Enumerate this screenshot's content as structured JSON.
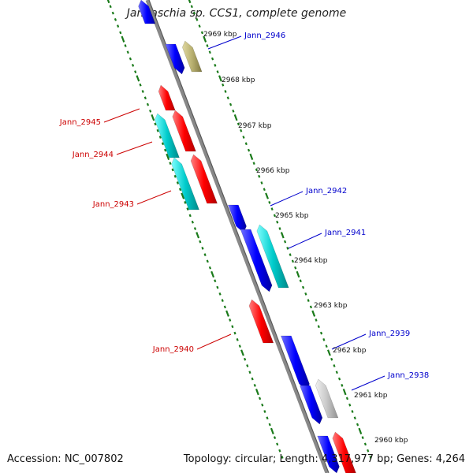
{
  "title": "Jannaschia sp. CCS1, complete genome",
  "footer": {
    "accession": "Accession: NC_007802",
    "topology": "Topology: circular; Length: 4,317,977 bp; Genes: 4,264"
  },
  "scale_labels": [
    "2969 kbp",
    "2968 kbp",
    "2967 kbp",
    "2966 kbp",
    "2965 kbp",
    "2964 kbp",
    "2963 kbp",
    "2962 kbp",
    "2961 kbp",
    "2960 kbp"
  ],
  "colors": {
    "red": "#ff0000",
    "blue": "#0000ff",
    "cyan": "#00cccc",
    "olive": "#b8b070",
    "gray": "#c8c8c8",
    "label_red": "#cc0000",
    "label_blue": "#0000cc",
    "axis": "#888888",
    "tick": "#1a7a1a"
  },
  "gene_labels": [
    {
      "id": "Jann_2946",
      "text": "Jann_2946",
      "strand": "plus"
    },
    {
      "id": "Jann_2945",
      "text": "Jann_2945",
      "strand": "minus"
    },
    {
      "id": "Jann_2944",
      "text": "Jann_2944",
      "strand": "minus"
    },
    {
      "id": "Jann_2943",
      "text": "Jann_2943",
      "strand": "minus"
    },
    {
      "id": "Jann_2942",
      "text": "Jann_2942",
      "strand": "plus"
    },
    {
      "id": "Jann_2941",
      "text": "Jann_2941",
      "strand": "plus"
    },
    {
      "id": "Jann_2940",
      "text": "Jann_2940",
      "strand": "minus"
    },
    {
      "id": "Jann_2939",
      "text": "Jann_2939",
      "strand": "plus"
    },
    {
      "id": "Jann_2938",
      "text": "Jann_2938",
      "strand": "plus"
    }
  ]
}
